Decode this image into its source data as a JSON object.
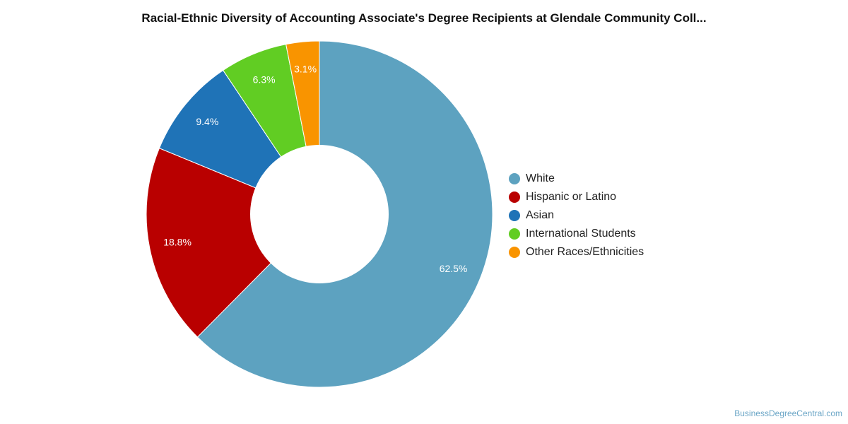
{
  "chart_data": {
    "type": "pie",
    "title": "Racial-Ethnic Diversity of Accounting Associate's Degree Recipients at Glendale Community Coll...",
    "legend_position": "right",
    "donut": true,
    "slices": [
      {
        "name": "White",
        "value": 62.5,
        "label": "62.5%",
        "color": "#5da2c0"
      },
      {
        "name": "Hispanic or Latino",
        "value": 18.8,
        "label": "18.8%",
        "color": "#b90000"
      },
      {
        "name": "Asian",
        "value": 9.4,
        "label": "9.4%",
        "color": "#1f73b7"
      },
      {
        "name": "International Students",
        "value": 6.3,
        "label": "6.3%",
        "color": "#61cd23"
      },
      {
        "name": "Other Races/Ethnicities",
        "value": 3.1,
        "label": "3.1%",
        "color": "#f99400"
      }
    ]
  },
  "footer": {
    "credit": "BusinessDegreeCentral.com"
  }
}
